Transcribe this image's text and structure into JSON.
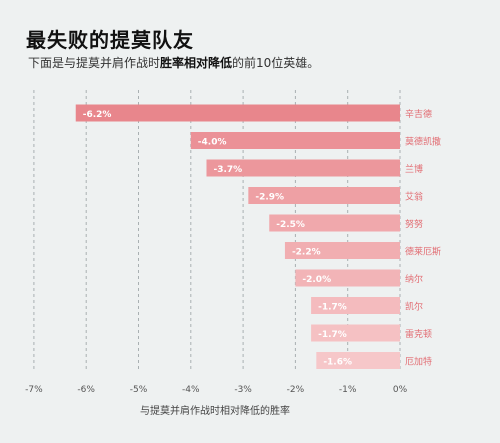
{
  "header": {
    "title": "最失败的提莫队友",
    "subtitle_prefix": "下面是与提莫并肩作战时",
    "subtitle_bold": "胜率相对降低",
    "subtitle_suffix": "的前10位英雄。"
  },
  "chart_data": {
    "type": "bar",
    "orientation": "horizontal",
    "title": "最失败的提莫队友",
    "xlabel": "与提莫并肩作战时相对降低的胜率",
    "xlim": [
      -7,
      0
    ],
    "xticks": [
      "-7%",
      "-6%",
      "-5%",
      "-4%",
      "-3%",
      "-2%",
      "-1%",
      "0%"
    ],
    "grid": "vertical-dashed",
    "categories": [
      "辛吉德",
      "莫德凯撒",
      "兰博",
      "艾翁",
      "努努",
      "德莱厄斯",
      "纳尔",
      "凯尔",
      "雷克顿",
      "厄加特"
    ],
    "values": [
      -6.2,
      -4.0,
      -3.7,
      -2.9,
      -2.5,
      -2.2,
      -2.0,
      -1.7,
      -1.7,
      -1.6
    ],
    "labels": [
      "-6.2%",
      "-4.0%",
      "-3.7%",
      "-2.9%",
      "-2.5%",
      "-2.2%",
      "-2.0%",
      "-1.7%",
      "-1.7%",
      "-1.6%"
    ],
    "colors": [
      "#e8868c",
      "#eb9197",
      "#ec979c",
      "#eea0a4",
      "#f0a8ac",
      "#f1aeb1",
      "#f2b4b7",
      "#f4bbbe",
      "#f5c1c3",
      "#f6c7c9"
    ],
    "label_color": "#ffffff",
    "category_color": "#e26c72",
    "grid_color": "#a9b0b2",
    "background": "#eef1f1"
  }
}
